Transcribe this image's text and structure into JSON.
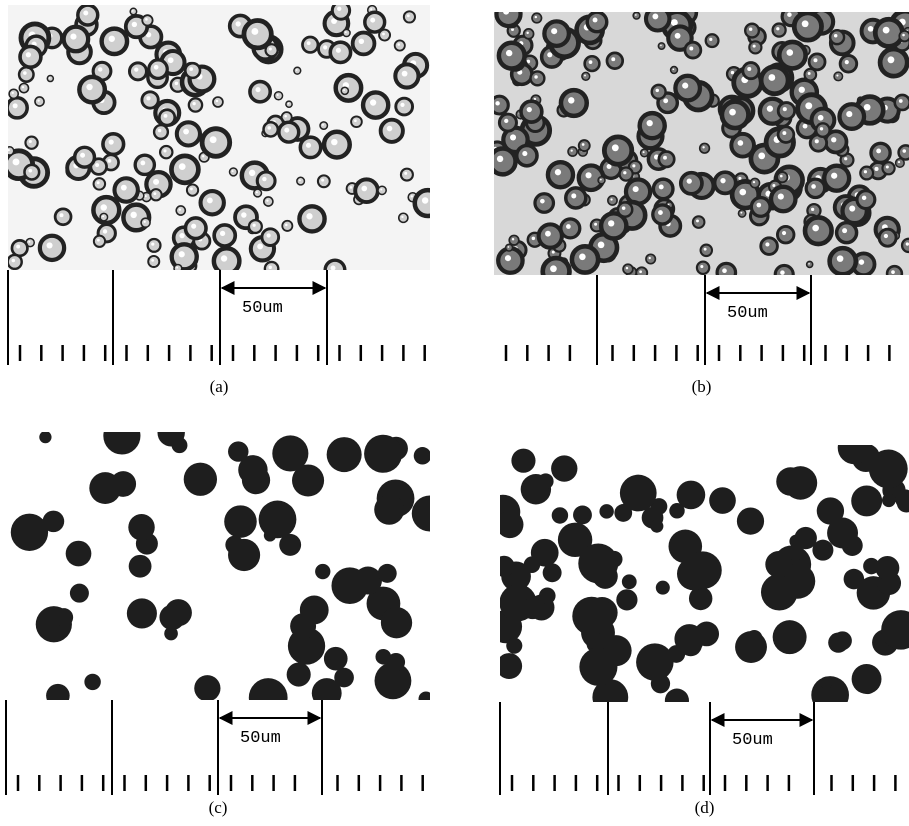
{
  "panels": [
    {
      "label": "(a)",
      "scale": "50um"
    },
    {
      "label": "(b)",
      "scale": "50um"
    },
    {
      "label": "(c)",
      "scale": "50um"
    },
    {
      "label": "(d)",
      "scale": "50um"
    }
  ]
}
